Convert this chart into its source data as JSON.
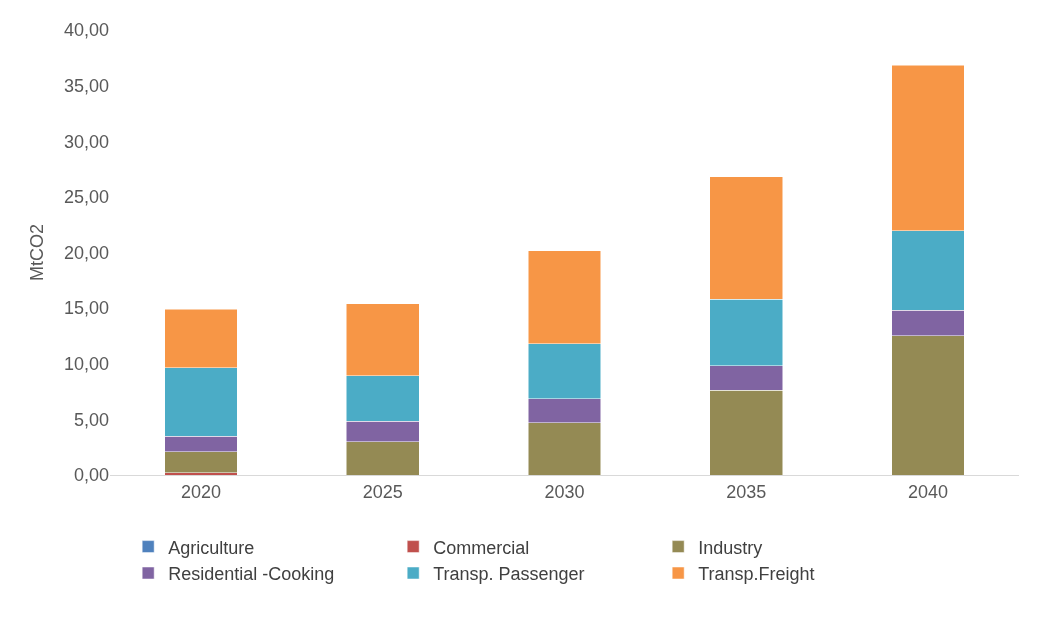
{
  "chart_data": {
    "type": "bar",
    "stacked": true,
    "ylabel": "MtCO2",
    "categories": [
      "2020",
      "2025",
      "2030",
      "2035",
      "2040"
    ],
    "ylim": [
      0,
      40
    ],
    "yticks": [
      {
        "value": 0,
        "label": "0,00"
      },
      {
        "value": 5,
        "label": "5,00"
      },
      {
        "value": 10,
        "label": "10,00"
      },
      {
        "value": 15,
        "label": "15,00"
      },
      {
        "value": 20,
        "label": "20,00"
      },
      {
        "value": 25,
        "label": "25,00"
      },
      {
        "value": 30,
        "label": "30,00"
      },
      {
        "value": 35,
        "label": "35,00"
      },
      {
        "value": 40,
        "label": "40,00"
      }
    ],
    "grid": false,
    "legend": "bottom",
    "series": [
      {
        "name": "Agriculture",
        "color": "#4f81bd",
        "values": [
          null,
          null,
          null,
          null,
          null
        ]
      },
      {
        "name": "Commercial",
        "color": "#c0504d",
        "values": [
          0.2,
          null,
          null,
          null,
          null
        ]
      },
      {
        "name": "Industry",
        "color": "#948a54",
        "values": [
          1.9,
          3.0,
          4.7,
          7.6,
          12.5
        ]
      },
      {
        "name": "Residential -Cooking",
        "color": "#8064a2",
        "values": [
          1.4,
          1.85,
          2.15,
          2.2,
          2.3
        ]
      },
      {
        "name": "Transp. Passenger",
        "color": "#4bacc6",
        "values": [
          6.15,
          4.05,
          4.95,
          6.0,
          7.15
        ]
      },
      {
        "name": "Transp.Freight",
        "color": "#f79646",
        "values": [
          5.25,
          6.5,
          8.35,
          11.0,
          14.9
        ]
      }
    ]
  }
}
